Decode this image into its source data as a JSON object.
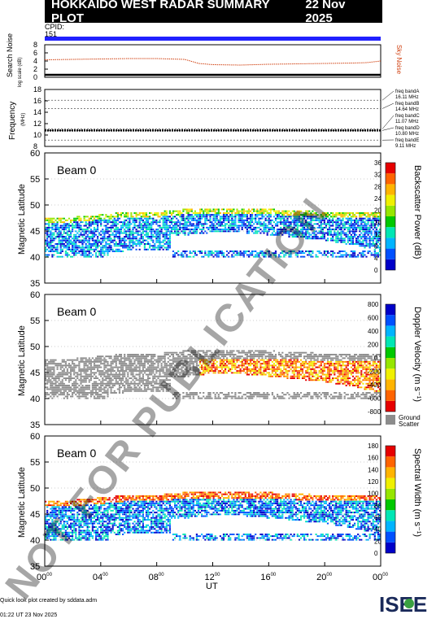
{
  "header": {
    "title": "HOKKAIDO WEST RADAR SUMMARY PLOT",
    "date": "22 Nov 2025",
    "cpid_label": "CPID:",
    "cpid_value": "151"
  },
  "watermark": "NOT FOR PUBLICATION",
  "noise_panel": {
    "ylabel": "Search Noise",
    "ysub": "log scale (dB)",
    "right_label": "Sky Noise",
    "yticks": [
      "0",
      "2",
      "4",
      "6",
      "8"
    ]
  },
  "freq_panel": {
    "ylabel": "Frequency",
    "yunit": "(MHz)",
    "yticks": [
      "8",
      "10",
      "12",
      "14",
      "16",
      "18"
    ],
    "bands": [
      {
        "name": "freq bandA",
        "value": "16.11 MHz"
      },
      {
        "name": "freq bandB",
        "value": "14.64 MHz"
      },
      {
        "name": "freq bandC",
        "value": "11.07 MHz"
      },
      {
        "name": "freq bandD",
        "value": "10.80 MHz"
      },
      {
        "name": "freq bandE",
        "value": "9.11 MHz"
      }
    ]
  },
  "beam_label": "Beam  0",
  "lat_label": "Magnetic Latitude",
  "lat_ticks": [
    "35",
    "40",
    "45",
    "50",
    "55",
    "60"
  ],
  "panels": [
    {
      "cbar_label": "Backscatter Power (dB)",
      "cbar_ticks": [
        "0",
        "4",
        "8",
        "12",
        "16",
        "20",
        "24",
        "28",
        "32",
        "36"
      ]
    },
    {
      "cbar_label": "Doppler Velocity (m s⁻¹)",
      "cbar_ticks": [
        "-800",
        "-600",
        "-400",
        "-200",
        "0",
        "200",
        "400",
        "600",
        "800"
      ],
      "ground_label_1": "Ground",
      "ground_label_2": "Scatter"
    },
    {
      "cbar_label": "Spectral Width (m s⁻¹)",
      "cbar_ticks": [
        "0",
        "20",
        "40",
        "60",
        "80",
        "100",
        "120",
        "140",
        "160",
        "180"
      ]
    }
  ],
  "x_axis": {
    "label": "UT",
    "ticks": [
      "00",
      "04",
      "08",
      "12",
      "16",
      "20",
      "00"
    ],
    "tick_sup": "00"
  },
  "footer": {
    "line1": "Quick look plot created by sddata.adm",
    "line2": "01:22 UT 23 Nov 2025"
  },
  "logo": "ISEE",
  "colors": {
    "accent_blue": "#2020ff",
    "noise_orange": "#d04010",
    "grey": "#8c8c8c"
  },
  "chart_data": [
    {
      "type": "line",
      "title": "Search Noise",
      "xlabel": "UT",
      "ylabel": "Search Noise",
      "x_range_hours": [
        0,
        24
      ],
      "ylim": [
        0,
        8
      ],
      "series": [
        {
          "name": "Sky Noise",
          "x": [
            0,
            2,
            4,
            6,
            8,
            10,
            11,
            12,
            14,
            16,
            18,
            20,
            22,
            23,
            24
          ],
          "values": [
            4.3,
            4.4,
            4.5,
            4.6,
            4.6,
            4.4,
            3.4,
            3.1,
            3.0,
            3.2,
            3.3,
            3.4,
            3.5,
            3.6,
            4.0
          ]
        },
        {
          "name": "Search Noise",
          "x": [
            0,
            24
          ],
          "values": [
            0.6,
            0.6
          ]
        }
      ]
    },
    {
      "type": "scatter",
      "title": "Frequency",
      "xlabel": "UT",
      "ylabel": "Frequency (MHz)",
      "ylim": [
        8,
        18
      ],
      "bands_mhz": [
        16.11,
        14.64,
        11.07,
        10.8,
        9.11
      ],
      "series": [
        {
          "name": "operating frequency",
          "x": [
            0,
            24
          ],
          "values": [
            10.8,
            10.8
          ]
        }
      ]
    },
    {
      "type": "heatmap",
      "title": "Beam 0 Backscatter Power",
      "xlabel": "UT",
      "ylabel": "Magnetic Latitude",
      "ylim": [
        35,
        60
      ],
      "clim": [
        0,
        36
      ],
      "scatter_band_hours": [
        0,
        24
      ],
      "lower_edge_lat": [
        40.5,
        40.5,
        40.5,
        41,
        44,
        44,
        44.5,
        44.5,
        44,
        43,
        41
      ],
      "upper_edge_lat": [
        47.5,
        47.5,
        48,
        48.5,
        48.5,
        49,
        49,
        49,
        49,
        48.5,
        48.5
      ],
      "edge_hours": [
        0,
        2,
        4,
        6,
        8,
        10,
        12,
        14,
        16,
        20,
        24
      ]
    },
    {
      "type": "heatmap",
      "title": "Beam 0 Doppler Velocity",
      "xlabel": "UT",
      "ylabel": "Magnetic Latitude",
      "ylim": [
        35,
        60
      ],
      "clim": [
        -800,
        800
      ]
    },
    {
      "type": "heatmap",
      "title": "Beam 0 Spectral Width",
      "xlabel": "UT",
      "ylabel": "Magnetic Latitude",
      "ylim": [
        35,
        60
      ],
      "clim": [
        0,
        180
      ]
    }
  ]
}
